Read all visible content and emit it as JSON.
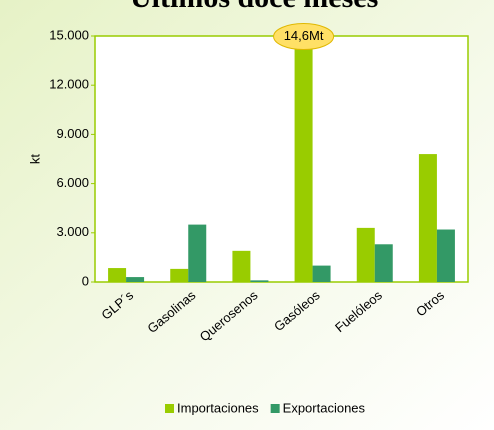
{
  "chart_data": {
    "type": "bar",
    "title": "Últimos doce meses",
    "y_label": "kt",
    "categories": [
      "GLP´s",
      "Gasolinas",
      "Querosenos",
      "Gasóleos",
      "Fuelóleos",
      "Otros"
    ],
    "series": [
      {
        "name": "Importaciones",
        "color": "#99cc00",
        "values": [
          850,
          800,
          1900,
          14600,
          3300,
          7800
        ],
        "value_labels": [
          null,
          null,
          null,
          "14,6Mt",
          null,
          null
        ]
      },
      {
        "name": "Exportaciones",
        "color": "#339966",
        "values": [
          300,
          3500,
          100,
          1000,
          2300,
          3200
        ]
      }
    ],
    "ylim": [
      0,
      15000
    ],
    "yticks": [
      0,
      {
        "value": 3000,
        "label": "3.000"
      },
      {
        "value": 6000,
        "label": "6.000"
      },
      {
        "value": 9000,
        "label": "9.000"
      },
      {
        "value": 12000,
        "label": "12.000"
      },
      {
        "value": 15000,
        "label": "15.000"
      }
    ],
    "legend": "bottom"
  }
}
